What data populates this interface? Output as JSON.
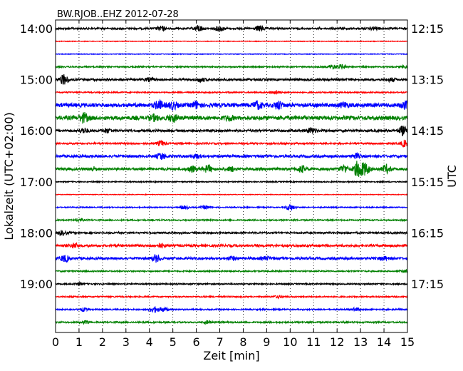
{
  "chart_data": {
    "type": "line",
    "title": "BW.RJOB..EHZ 2012-07-28",
    "xlabel": "Zeit  [min]",
    "ylabel_left": "Lokalzeit (UTC+02:00)",
    "ylabel_right": "UTC",
    "xlim": [
      0,
      15
    ],
    "x_ticks": [
      "0",
      "1",
      "2",
      "3",
      "4",
      "5",
      "6",
      "7",
      "8",
      "9",
      "10",
      "11",
      "12",
      "13",
      "14",
      "15"
    ],
    "left_ticks": [
      {
        "row": 0,
        "label": "14:00"
      },
      {
        "row": 4,
        "label": "15:00"
      },
      {
        "row": 8,
        "label": "16:00"
      },
      {
        "row": 12,
        "label": "17:00"
      },
      {
        "row": 16,
        "label": "18:00"
      },
      {
        "row": 20,
        "label": "19:00"
      }
    ],
    "right_ticks": [
      {
        "row": 0,
        "label": "12:15"
      },
      {
        "row": 4,
        "label": "13:15"
      },
      {
        "row": 8,
        "label": "14:15"
      },
      {
        "row": 12,
        "label": "15:15"
      },
      {
        "row": 16,
        "label": "16:15"
      },
      {
        "row": 20,
        "label": "17:15"
      }
    ],
    "grid": "vertical-dotted",
    "color_cycle": [
      "#000000",
      "#ff0000",
      "#0000ff",
      "#008000"
    ],
    "row_minutes": 15,
    "rows": [
      {
        "start": "14:00",
        "level": 0.45,
        "events": [
          [
            4.5,
            0.9
          ],
          [
            6.1,
            1.3
          ],
          [
            7.0,
            1.1
          ],
          [
            8.7,
            1.2
          ],
          [
            13.6,
            0.6
          ]
        ]
      },
      {
        "start": "14:15",
        "level": 0.15,
        "events": []
      },
      {
        "start": "14:30",
        "level": 0.15,
        "events": []
      },
      {
        "start": "14:45",
        "level": 0.3,
        "events": [
          [
            11.8,
            1.0
          ],
          [
            12.2,
            1.0
          ],
          [
            14.9,
            0.7
          ]
        ]
      },
      {
        "start": "15:00",
        "level": 0.5,
        "events": [
          [
            0.35,
            2.2
          ],
          [
            4.0,
            0.7
          ],
          [
            6.2,
            0.8
          ],
          [
            14.3,
            0.7
          ]
        ]
      },
      {
        "start": "15:15",
        "level": 0.3,
        "events": [
          [
            9.4,
            0.8
          ]
        ]
      },
      {
        "start": "15:30",
        "level": 0.9,
        "events": [
          [
            4.4,
            1.8
          ],
          [
            5.0,
            1.5
          ],
          [
            6.0,
            1.4
          ],
          [
            8.6,
            1.5
          ],
          [
            9.5,
            1.6
          ],
          [
            12.3,
            1.0
          ],
          [
            14.9,
            1.4
          ]
        ]
      },
      {
        "start": "15:45",
        "level": 0.9,
        "events": [
          [
            1.2,
            2.0
          ],
          [
            4.2,
            1.1
          ],
          [
            5.0,
            1.5
          ],
          [
            7.4,
            0.9
          ]
        ]
      },
      {
        "start": "16:00",
        "level": 0.55,
        "events": [
          [
            1.2,
            1.1
          ],
          [
            2.2,
            0.8
          ],
          [
            10.9,
            1.2
          ],
          [
            14.8,
            1.9
          ]
        ]
      },
      {
        "start": "16:15",
        "level": 0.4,
        "events": [
          [
            4.5,
            1.1
          ],
          [
            14.9,
            1.5
          ]
        ]
      },
      {
        "start": "16:30",
        "level": 0.6,
        "events": [
          [
            4.5,
            1.4
          ],
          [
            6.0,
            0.9
          ],
          [
            12.8,
            1.0
          ]
        ]
      },
      {
        "start": "16:45",
        "level": 0.6,
        "events": [
          [
            1.6,
            0.8
          ],
          [
            5.8,
            1.2
          ],
          [
            6.5,
            1.5
          ],
          [
            7.5,
            0.9
          ],
          [
            10.5,
            1.4
          ],
          [
            12.3,
            1.6
          ],
          [
            12.9,
            3.6
          ],
          [
            13.2,
            2.5
          ],
          [
            14.1,
            1.8
          ]
        ]
      },
      {
        "start": "17:00",
        "level": 0.25,
        "events": []
      },
      {
        "start": "17:15",
        "level": 0.15,
        "events": []
      },
      {
        "start": "17:30",
        "level": 0.25,
        "events": [
          [
            5.5,
            0.8
          ],
          [
            6.4,
            0.8
          ],
          [
            10.0,
            1.4
          ]
        ]
      },
      {
        "start": "17:45",
        "level": 0.3,
        "events": [
          [
            1.0,
            0.6
          ]
        ]
      },
      {
        "start": "18:00",
        "level": 0.4,
        "events": [
          [
            0.3,
            1.0
          ]
        ]
      },
      {
        "start": "18:15",
        "level": 0.55,
        "events": [
          [
            0.8,
            1.0
          ],
          [
            4.5,
            0.8
          ]
        ]
      },
      {
        "start": "18:30",
        "level": 0.55,
        "events": [
          [
            0.4,
            1.4
          ],
          [
            4.3,
            1.5
          ],
          [
            7.5,
            0.8
          ],
          [
            9.0,
            0.7
          ],
          [
            14.0,
            0.7
          ]
        ]
      },
      {
        "start": "18:45",
        "level": 0.3,
        "events": [
          [
            14.9,
            0.5
          ]
        ]
      },
      {
        "start": "19:00",
        "level": 0.3,
        "events": [
          [
            1.0,
            0.6
          ]
        ]
      },
      {
        "start": "19:15",
        "level": 0.3,
        "events": [
          [
            9.5,
            0.5
          ]
        ]
      },
      {
        "start": "19:30",
        "level": 0.3,
        "events": [
          [
            1.2,
            0.7
          ],
          [
            4.2,
            1.3
          ],
          [
            4.6,
            1.0
          ],
          [
            12.8,
            0.7
          ]
        ]
      },
      {
        "start": "19:45",
        "level": 0.35,
        "events": [
          [
            1.3,
            0.6
          ],
          [
            6.5,
            0.6
          ]
        ]
      }
    ]
  }
}
